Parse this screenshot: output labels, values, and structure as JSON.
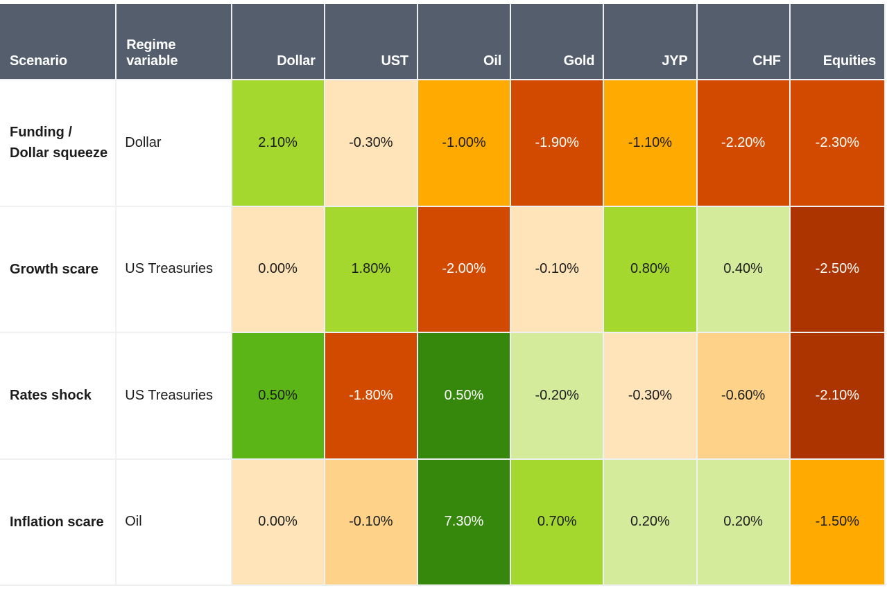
{
  "colors": {
    "header_bg": "#545e6d",
    "header_text": "#ffffff",
    "light_text": "#ffffff",
    "dark_text": "#1c1c1c"
  },
  "chart_data": {
    "type": "heatmap",
    "columns": [
      "Scenario",
      "Regime variable",
      "Dollar",
      "UST",
      "Oil",
      "Gold",
      "JYP",
      "CHF",
      "Equities"
    ],
    "assets": [
      "Dollar",
      "UST",
      "Oil",
      "Gold",
      "JYP",
      "CHF",
      "Equities"
    ],
    "rows": [
      {
        "scenario": "Funding /\nDollar squeeze",
        "regime": "Dollar",
        "values": [
          2.1,
          -0.3,
          -1.0,
          -1.9,
          -1.1,
          -2.2,
          -2.3
        ],
        "labels": [
          "2.10%",
          "-0.30%",
          "-1.00%",
          "-1.90%",
          "-1.10%",
          "-2.20%",
          "-2.30%"
        ],
        "colors": [
          "#a4d82f",
          "#fee4b8",
          "#ffaa00",
          "#d24a00",
          "#ffaa00",
          "#d24a00",
          "#d24a00"
        ]
      },
      {
        "scenario": "Growth scare",
        "regime": "US Treasuries",
        "values": [
          0.0,
          1.8,
          -2.0,
          -0.1,
          0.8,
          0.4,
          -2.5
        ],
        "labels": [
          "0.00%",
          "1.80%",
          "-2.00%",
          "-0.10%",
          "0.80%",
          "0.40%",
          "-2.50%"
        ],
        "colors": [
          "#fee4b8",
          "#a4d82f",
          "#d24a00",
          "#fee4b8",
          "#a4d82f",
          "#d3eb9a",
          "#ab3400"
        ]
      },
      {
        "scenario": "Rates shock",
        "regime": "US Treasuries",
        "values": [
          0.5,
          -1.8,
          0.5,
          -0.2,
          -0.3,
          -0.6,
          -2.1
        ],
        "labels": [
          "0.50%",
          "-1.80%",
          "0.50%",
          "-0.20%",
          "-0.30%",
          "-0.60%",
          "-2.10%"
        ],
        "colors": [
          "#5cb517",
          "#d24a00",
          "#35880c",
          "#d3eb9a",
          "#fee4b8",
          "#fed389",
          "#ab3400"
        ]
      },
      {
        "scenario": "Inflation scare",
        "regime": "Oil",
        "values": [
          0.0,
          -0.1,
          7.3,
          0.7,
          0.2,
          0.2,
          -1.5
        ],
        "labels": [
          "0.00%",
          "-0.10%",
          "7.30%",
          "0.70%",
          "0.20%",
          "0.20%",
          "-1.50%"
        ],
        "colors": [
          "#fee4b8",
          "#fed389",
          "#35880c",
          "#a4d82f",
          "#d3eb9a",
          "#d3eb9a",
          "#ffaa00"
        ]
      }
    ]
  }
}
